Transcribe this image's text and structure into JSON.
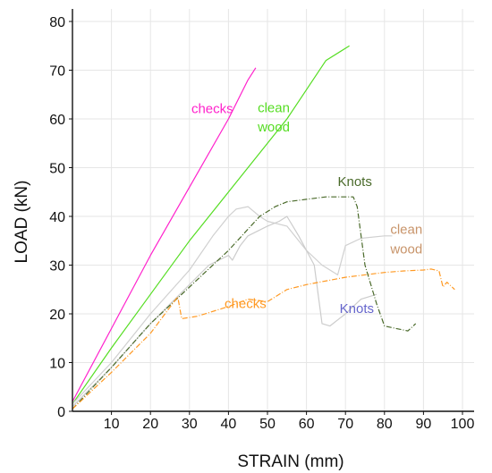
{
  "chart_data": {
    "type": "line",
    "xlabel": "STRAIN  (mm)",
    "ylabel": "LOAD (kN)",
    "xlim": [
      0,
      100
    ],
    "ylim": [
      0,
      80
    ],
    "x_ticks": [
      10,
      20,
      30,
      40,
      50,
      60,
      70,
      80,
      90,
      100
    ],
    "y_ticks": [
      0,
      10,
      20,
      30,
      40,
      50,
      60,
      70,
      80
    ],
    "grid": true,
    "series": [
      {
        "color": "#ff22cc",
        "dash": false,
        "x": [
          0,
          10,
          20,
          30,
          40,
          45,
          47
        ],
        "y": [
          2,
          17,
          32,
          46,
          60,
          68,
          70.5
        ]
      },
      {
        "color": "#55dd22",
        "dash": false,
        "x": [
          0,
          10,
          20,
          30,
          40,
          50,
          55,
          60,
          65,
          70,
          71
        ],
        "y": [
          1.5,
          13,
          24,
          35,
          45,
          55,
          60,
          66,
          72,
          74.5,
          75
        ]
      },
      {
        "color": "#d0d0d0",
        "dash": false,
        "x": [
          0,
          10,
          20,
          30,
          36,
          40,
          42,
          45,
          48,
          50,
          55,
          60,
          64,
          68,
          70,
          74,
          80,
          82
        ],
        "y": [
          1.5,
          10,
          20,
          29,
          36,
          40,
          41.5,
          42,
          40,
          39,
          38,
          33,
          30,
          28,
          34,
          35.5,
          36,
          36
        ]
      },
      {
        "color": "#cccccc",
        "dash": false,
        "x": [
          0,
          10,
          20,
          30,
          35,
          40,
          41,
          43,
          45,
          50,
          53,
          55,
          58,
          60,
          62,
          64,
          66,
          70,
          74,
          78
        ],
        "y": [
          1,
          9,
          18,
          26,
          30,
          32,
          31,
          34,
          36,
          38,
          39,
          40,
          36,
          33,
          30,
          18,
          17.5,
          20,
          23,
          24
        ]
      },
      {
        "color": "#4a6a2a",
        "dash": true,
        "x": [
          0,
          10,
          20,
          30,
          40,
          48,
          52,
          55,
          60,
          65,
          70,
          72,
          73,
          75,
          78,
          80,
          83,
          86,
          88
        ],
        "y": [
          0.5,
          9,
          18,
          25.5,
          33,
          40,
          42,
          43,
          43.5,
          44,
          44,
          44,
          42,
          30,
          22,
          17.5,
          17,
          16.5,
          18
        ]
      },
      {
        "color": "#ff9922",
        "dash": true,
        "x": [
          0,
          10,
          20,
          27,
          28,
          32,
          40,
          45,
          50,
          55,
          60,
          70,
          80,
          85,
          90,
          92,
          94,
          95,
          96,
          98
        ],
        "y": [
          0.5,
          8,
          16,
          23.5,
          19,
          19.5,
          21.5,
          23,
          22.5,
          25,
          26,
          27.5,
          28.5,
          28.8,
          29,
          29.2,
          28.8,
          25.5,
          26.5,
          25
        ]
      }
    ],
    "annotations": [
      {
        "text": "checks",
        "color": "#ff22cc",
        "x": 30.5,
        "y": 61.2
      },
      {
        "text": "clean",
        "color": "#55dd22",
        "x": 47.5,
        "y": 61.4
      },
      {
        "text": "wood",
        "color": "#55dd22",
        "x": 47.5,
        "y": 57.4
      },
      {
        "text": "Knots",
        "color": "#4a6a2a",
        "x": 68,
        "y": 46.2
      },
      {
        "text": "clean",
        "color": "#c8946a",
        "x": 81.5,
        "y": 36.4
      },
      {
        "text": "wood",
        "color": "#c8946a",
        "x": 81.5,
        "y": 32.4
      },
      {
        "text": "checks",
        "color": "#ff9922",
        "x": 39,
        "y": 21.2
      },
      {
        "text": "Knots",
        "color": "#6666cc",
        "x": 68.5,
        "y": 20.2
      }
    ]
  }
}
